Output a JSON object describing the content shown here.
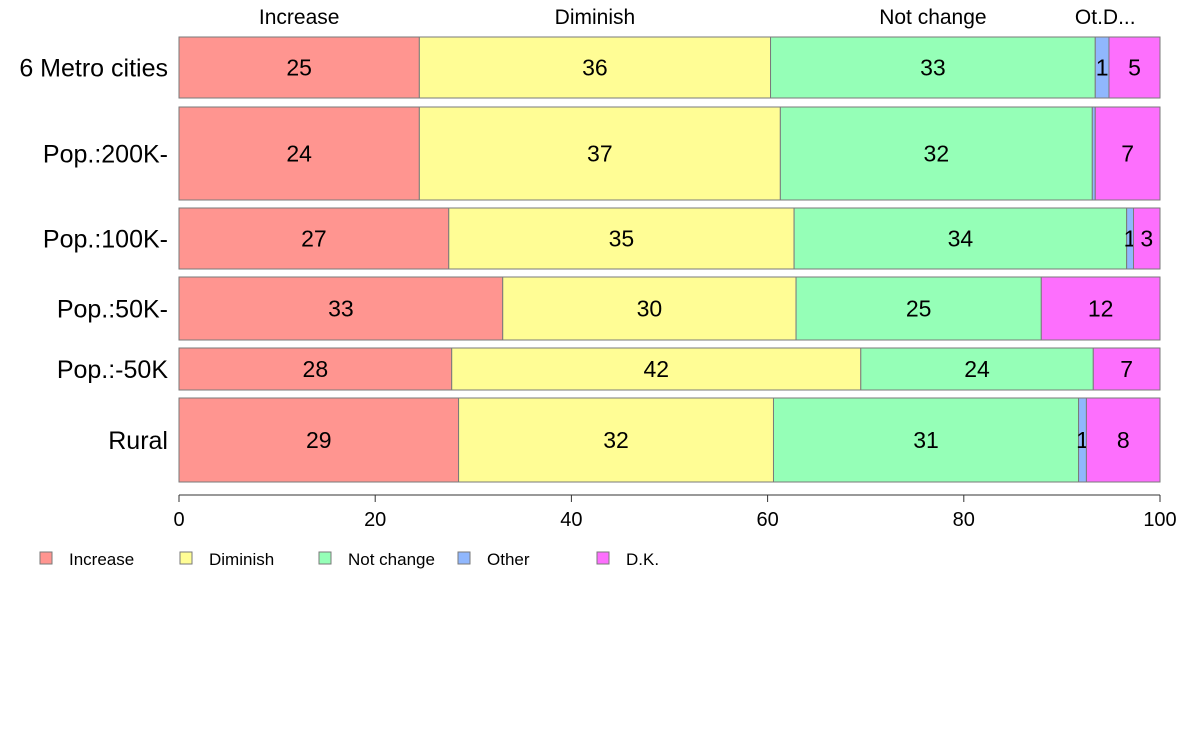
{
  "chart_data": {
    "type": "bar",
    "orientation": "horizontal",
    "stacked": true,
    "categories": [
      "6 Metro cities",
      "Pop.:200K-",
      "Pop.:100K-",
      "Pop.:50K-",
      "Pop.:-50K",
      "Rural"
    ],
    "series": [
      {
        "name": "Increase",
        "color": "#ff9590",
        "values": [
          24.5,
          24.5,
          27.5,
          33.0,
          27.8,
          28.5
        ]
      },
      {
        "name": "Diminish",
        "color": "#fffd95",
        "values": [
          35.8,
          36.8,
          35.2,
          29.9,
          41.7,
          32.1
        ]
      },
      {
        "name": "Not change",
        "color": "#95ffb7",
        "values": [
          33.1,
          31.8,
          33.9,
          25.0,
          23.7,
          31.1
        ]
      },
      {
        "name": "Other",
        "color": "#90b7fd",
        "values": [
          1.4,
          0.3,
          0.7,
          0.0,
          0.0,
          0.8
        ]
      },
      {
        "name": "D.K.",
        "color": "#fd6ffd",
        "values": [
          5.2,
          6.6,
          2.7,
          12.1,
          6.8,
          7.5
        ]
      }
    ],
    "labels": [
      [
        "25",
        "36",
        "33",
        "1",
        "5"
      ],
      [
        "24",
        "37",
        "32",
        "",
        "7"
      ],
      [
        "27",
        "35",
        "34",
        "1",
        "3"
      ],
      [
        "33",
        "30",
        "25",
        "",
        "12"
      ],
      [
        "28",
        "42",
        "24",
        "",
        "7"
      ],
      [
        "29",
        "32",
        "31",
        "1",
        "8"
      ]
    ],
    "header_labels": [
      {
        "text": "Increase",
        "series": 0
      },
      {
        "text": "Diminish",
        "series": 1
      },
      {
        "text": "Not change",
        "series": 2
      },
      {
        "text": "Ot.D...",
        "series": 3
      }
    ],
    "xlim": [
      0,
      100
    ],
    "xticks": [
      0,
      20,
      40,
      60,
      80,
      100
    ],
    "legend_position": "bottom-left",
    "grid": false
  }
}
